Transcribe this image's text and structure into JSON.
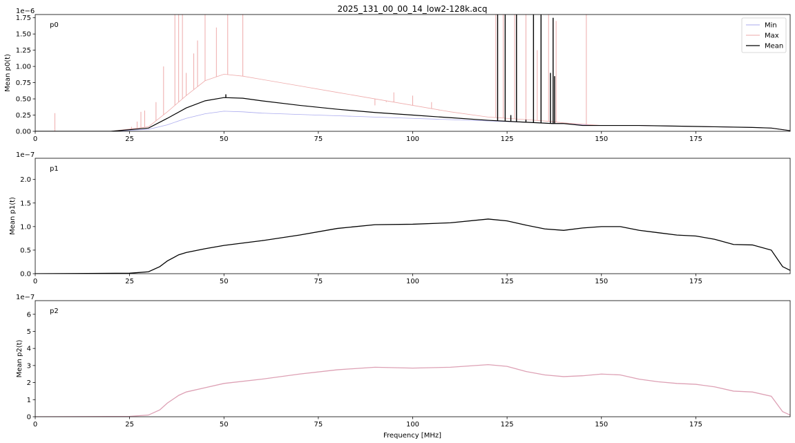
{
  "figure": {
    "title": "2025_131_00_00_14_low2-128k.acq",
    "xlabel": "Frequency [MHz]"
  },
  "legend": {
    "entries": [
      {
        "label": "Min",
        "color": "#aaaaee"
      },
      {
        "label": "Max",
        "color": "#eeaaaa"
      },
      {
        "label": "Mean",
        "color": "#000000"
      }
    ]
  },
  "chart_data": [
    {
      "type": "line",
      "panel_label": "p0",
      "ylabel": "Mean p0(t)",
      "exponent_label": "1e−6",
      "xlim": [
        0,
        200
      ],
      "ylim": [
        0,
        1.8
      ],
      "x_ticks": [
        "0",
        "25",
        "50",
        "75",
        "100",
        "125",
        "150",
        "175"
      ],
      "y_ticks": [
        "0.00",
        "0.25",
        "0.50",
        "0.75",
        "1.00",
        "1.25",
        "1.50",
        "1.75"
      ],
      "grid": false,
      "legend_position": "top-right",
      "series": [
        {
          "name": "Min",
          "color": "#aaaaee",
          "x": [
            0,
            20,
            30,
            35,
            40,
            45,
            50,
            55,
            60,
            70,
            80,
            90,
            100,
            110,
            120,
            130,
            137,
            140,
            145,
            150,
            160,
            170,
            180,
            190,
            195,
            200
          ],
          "y": [
            0,
            0,
            0.03,
            0.1,
            0.2,
            0.27,
            0.31,
            0.3,
            0.28,
            0.26,
            0.24,
            0.22,
            0.2,
            0.18,
            0.16,
            0.14,
            0.12,
            0.12,
            0.1,
            0.09,
            0.09,
            0.08,
            0.07,
            0.06,
            0.05,
            0.01
          ]
        },
        {
          "name": "Max",
          "color": "#eeaaaa",
          "x": [
            0,
            20,
            30,
            35,
            40,
            45,
            50,
            55,
            60,
            70,
            80,
            90,
            100,
            110,
            120,
            130,
            137,
            140,
            145,
            150,
            160,
            170,
            180,
            190,
            195,
            200
          ],
          "y": [
            0,
            0,
            0.07,
            0.3,
            0.55,
            0.78,
            0.88,
            0.85,
            0.8,
            0.7,
            0.6,
            0.5,
            0.4,
            0.3,
            0.22,
            0.18,
            0.15,
            0.13,
            0.11,
            0.09,
            0.09,
            0.08,
            0.07,
            0.06,
            0.05,
            0.01
          ],
          "spikes": [
            [
              5.2,
              0.28
            ],
            [
              25.5,
              0.07
            ],
            [
              27,
              0.15
            ],
            [
              28,
              0.3
            ],
            [
              29,
              0.32
            ],
            [
              32,
              0.45
            ],
            [
              34,
              1.0
            ],
            [
              37,
              1.8
            ],
            [
              38,
              1.8
            ],
            [
              39,
              1.8
            ],
            [
              40,
              0.9
            ],
            [
              42,
              1.2
            ],
            [
              43,
              1.4
            ],
            [
              45,
              1.8
            ],
            [
              48,
              1.6
            ],
            [
              51,
              1.8
            ],
            [
              55,
              1.8
            ],
            [
              90,
              0.4
            ],
            [
              93,
              0.45
            ],
            [
              95,
              0.6
            ],
            [
              100,
              0.55
            ],
            [
              105,
              0.45
            ],
            [
              107,
              0.32
            ],
            [
              122,
              1.8
            ],
            [
              124,
              1.8
            ],
            [
              127,
              1.8
            ],
            [
              130,
              1.8
            ],
            [
              133,
              1.25
            ],
            [
              136,
              1.8
            ],
            [
              138,
              1.7
            ],
            [
              146,
              1.8
            ]
          ]
        },
        {
          "name": "Mean",
          "color": "#000000",
          "x": [
            0,
            20,
            30,
            35,
            40,
            45,
            50,
            55,
            60,
            70,
            80,
            90,
            100,
            110,
            120,
            130,
            137,
            140,
            145,
            150,
            160,
            170,
            180,
            190,
            195,
            200
          ],
          "y": [
            0,
            0,
            0.05,
            0.2,
            0.36,
            0.47,
            0.52,
            0.51,
            0.47,
            0.4,
            0.34,
            0.29,
            0.25,
            0.21,
            0.17,
            0.14,
            0.12,
            0.12,
            0.09,
            0.09,
            0.09,
            0.08,
            0.07,
            0.06,
            0.05,
            0.01
          ],
          "spikes": [
            [
              39,
              0.33
            ],
            [
              50.5,
              0.57
            ],
            [
              122.5,
              1.8
            ],
            [
              124.5,
              1.8
            ],
            [
              126,
              0.25
            ],
            [
              127.5,
              1.8
            ],
            [
              130,
              0.18
            ],
            [
              132,
              1.8
            ],
            [
              134,
              1.8
            ],
            [
              136.5,
              0.9
            ],
            [
              137.2,
              1.75
            ],
            [
              137.6,
              0.85
            ]
          ]
        }
      ]
    },
    {
      "type": "line",
      "panel_label": "p1",
      "ylabel": "Mean p1(t)",
      "exponent_label": "1e−7",
      "xlim": [
        0,
        200
      ],
      "ylim": [
        0,
        2.45
      ],
      "x_ticks": [
        "0",
        "25",
        "50",
        "75",
        "100",
        "125",
        "150",
        "175"
      ],
      "y_ticks": [
        "0.0",
        "0.5",
        "1.0",
        "1.5",
        "2.0"
      ],
      "grid": false,
      "series": [
        {
          "name": "Mean",
          "color": "#000000",
          "x": [
            0,
            25,
            30,
            33,
            35,
            38,
            40,
            45,
            50,
            60,
            70,
            80,
            90,
            100,
            110,
            120,
            125,
            130,
            135,
            140,
            145,
            150,
            155,
            160,
            165,
            170,
            175,
            180,
            185,
            190,
            195,
            198,
            200
          ],
          "y": [
            0,
            0.01,
            0.04,
            0.15,
            0.27,
            0.4,
            0.45,
            0.53,
            0.6,
            0.7,
            0.82,
            0.96,
            1.04,
            1.05,
            1.08,
            1.16,
            1.12,
            1.03,
            0.95,
            0.92,
            0.97,
            1.0,
            1.0,
            0.92,
            0.87,
            0.82,
            0.8,
            0.73,
            0.62,
            0.61,
            0.5,
            0.15,
            0.07
          ]
        }
      ]
    },
    {
      "type": "line",
      "panel_label": "p2",
      "ylabel": "Mean p2(t)",
      "exponent_label": "1e−7",
      "xlim": [
        0,
        200
      ],
      "ylim": [
        0,
        6.8
      ],
      "x_ticks": [
        "0",
        "25",
        "50",
        "75",
        "100",
        "125",
        "150",
        "175"
      ],
      "y_ticks": [
        "0",
        "1",
        "2",
        "3",
        "4",
        "5",
        "6"
      ],
      "grid": false,
      "series": [
        {
          "name": "Mean",
          "color": "#dda0b4",
          "x": [
            0,
            25,
            30,
            33,
            35,
            38,
            40,
            45,
            50,
            60,
            70,
            80,
            90,
            100,
            110,
            120,
            125,
            130,
            135,
            140,
            145,
            150,
            155,
            160,
            165,
            170,
            175,
            180,
            185,
            190,
            195,
            198,
            200
          ],
          "y": [
            0,
            0.02,
            0.1,
            0.4,
            0.8,
            1.25,
            1.45,
            1.7,
            1.95,
            2.2,
            2.5,
            2.75,
            2.9,
            2.85,
            2.9,
            3.05,
            2.95,
            2.65,
            2.45,
            2.35,
            2.4,
            2.5,
            2.45,
            2.2,
            2.05,
            1.95,
            1.9,
            1.75,
            1.5,
            1.45,
            1.2,
            0.3,
            0.1
          ]
        }
      ]
    }
  ]
}
